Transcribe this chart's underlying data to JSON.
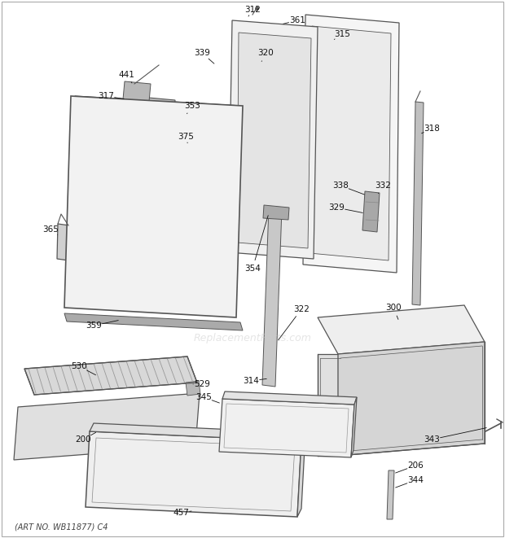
{
  "watermark": "ReplacementParts.com",
  "footer": "(ART NO. WB11877) C4",
  "bg_color": "#ffffff",
  "line_color": "#555555",
  "label_color": "#111111",
  "watermark_color": "#cccccc"
}
